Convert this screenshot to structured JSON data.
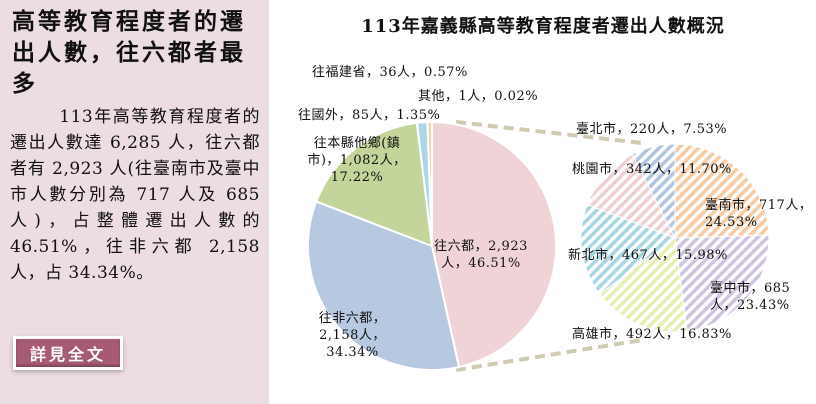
{
  "headline": "高等教育程度者的遷出人數，往六都者最多",
  "summary": "113年高等教育程度者的遷出人數達 6,285 人，往六都者有 2,923 人(往臺南市及臺中市人數分別為 717 人及 685 人)，占整體遷出人數的 46.51%，往非六都 2,158 人，占 34.34%。",
  "more_button": "詳見全文",
  "chart_data": [
    {
      "type": "pie",
      "title": "113年嘉義縣高等教育程度者遷出人數概況",
      "start": "12 o'clock, clockwise",
      "slices": [
        {
          "name": "往六都",
          "value": 2923,
          "percent": 46.51,
          "label": "往六都，2,923人，46.51%",
          "color": "#f0d3d6"
        },
        {
          "name": "往非六都",
          "value": 2158,
          "percent": 34.34,
          "label": "往非六都，2,158人，34.34%",
          "color": "#b7c9e1"
        },
        {
          "name": "往本縣他鄉(鎮市)",
          "value": 1082,
          "percent": 17.22,
          "label": "往本縣他鄉(鎮市)，1,082人，17.22%",
          "color": "#c3d59b"
        },
        {
          "name": "往國外",
          "value": 85,
          "percent": 1.35,
          "label": "往國外，85人，1.35%",
          "color": "#a8d8e6"
        },
        {
          "name": "往福建省",
          "value": 36,
          "percent": 0.57,
          "label": "往福建省，36人，0.57%",
          "color": "#f7caa8"
        },
        {
          "name": "其他",
          "value": 1,
          "percent": 0.02,
          "label": "其他，1人，0.02%",
          "color": "#999999"
        }
      ]
    },
    {
      "type": "pie",
      "pattern": "diagonal hatch",
      "breakdown_of": "往六都",
      "start": "12 o'clock, clockwise",
      "slices": [
        {
          "name": "臺南市",
          "value": 717,
          "percent": 24.53,
          "label": "臺南市，717人，24.53%",
          "color": "#f9c9a2"
        },
        {
          "name": "臺中市",
          "value": 685,
          "percent": 23.43,
          "label": "臺中市，685人，23.43%",
          "color": "#cfc3e0"
        },
        {
          "name": "高雄市",
          "value": 492,
          "percent": 16.83,
          "label": "高雄市，492人，16.83%",
          "color": "#e4efb0"
        },
        {
          "name": "新北市",
          "value": 467,
          "percent": 15.98,
          "label": "新北市，467人，15.98%",
          "color": "#a6d6e3"
        },
        {
          "name": "桃園市",
          "value": 342,
          "percent": 11.7,
          "label": "桃園市，342人，11.70%",
          "color": "#efcfd4"
        },
        {
          "name": "臺北市",
          "value": 220,
          "percent": 7.53,
          "label": "臺北市，220人，7.53%",
          "color": "#b2c5e0"
        }
      ]
    }
  ],
  "connector_color": "#cfcab0"
}
